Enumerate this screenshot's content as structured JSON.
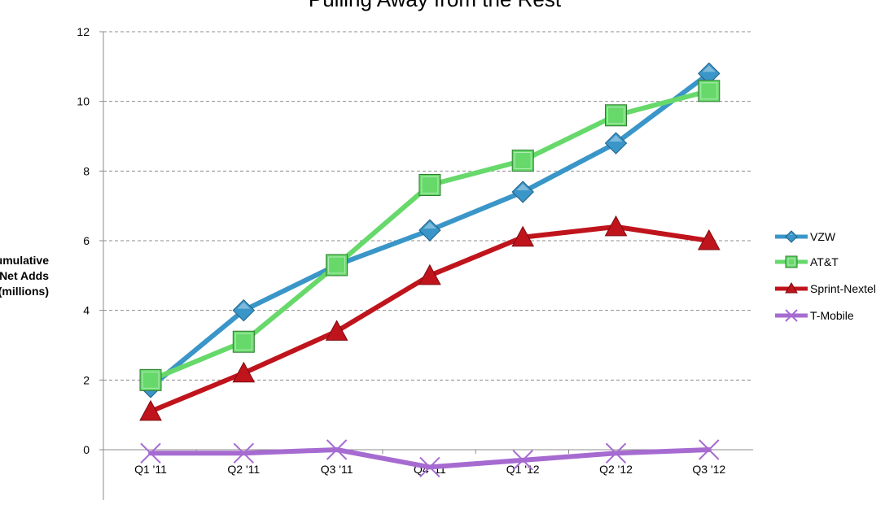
{
  "chart_data": {
    "type": "line",
    "title": "Pulling Away from the Rest",
    "ylabel_lines": [
      "Cumulative",
      "Net Adds",
      "(millions)"
    ],
    "xlabel": "",
    "categories": [
      "Q1 '11",
      "Q2 '11",
      "Q3 '11",
      "Q4 '11",
      "Q1 '12",
      "Q2 '12",
      "Q3 '12"
    ],
    "ylim": [
      0,
      12
    ],
    "yticks": [
      "0",
      "2",
      "4",
      "6",
      "8",
      "10",
      "12"
    ],
    "grid": "horizontal dashed",
    "legend_position": "right",
    "series": [
      {
        "name": "VZW",
        "color": "#3a96c8",
        "marker": "diamond",
        "values": [
          1.8,
          4.0,
          5.3,
          6.3,
          7.4,
          8.8,
          10.8
        ]
      },
      {
        "name": "AT&T",
        "color": "#66d96a",
        "marker": "square",
        "values": [
          2.0,
          3.1,
          5.3,
          7.6,
          8.3,
          9.6,
          10.3
        ]
      },
      {
        "name": "Sprint-Nextel",
        "color": "#c0141c",
        "marker": "triangle",
        "values": [
          1.1,
          2.2,
          3.4,
          5.0,
          6.1,
          6.4,
          6.0
        ]
      },
      {
        "name": "T-Mobile",
        "color": "#a66bd1",
        "marker": "x",
        "values": [
          -0.1,
          -0.1,
          0.0,
          -0.5,
          -0.3,
          -0.1,
          0.0
        ]
      }
    ]
  }
}
